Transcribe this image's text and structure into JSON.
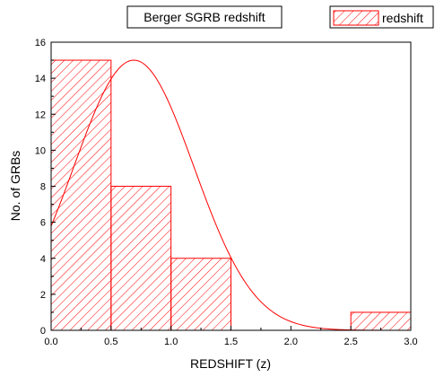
{
  "chart_data": {
    "type": "bar",
    "title": "Berger SGRB redshift",
    "xlabel": "REDSHIFT (z)",
    "ylabel": "No. of GRBs",
    "xlim": [
      0.0,
      3.0
    ],
    "ylim": [
      0,
      16
    ],
    "x_ticks": [
      "0.0",
      "0.5",
      "1.0",
      "1.5",
      "2.0",
      "2.5",
      "3.0"
    ],
    "y_ticks": [
      "0",
      "2",
      "4",
      "6",
      "8",
      "10",
      "12",
      "14",
      "16"
    ],
    "legend": {
      "position": "top-right",
      "entries": [
        "redshift"
      ]
    },
    "grid": false,
    "colors": {
      "series": "#ff0000",
      "axis": "#000000"
    },
    "series": [
      {
        "name": "redshift",
        "style": "hatched-histogram",
        "bins": [
          {
            "x0": 0.0,
            "x1": 0.5,
            "value": 15
          },
          {
            "x0": 0.5,
            "x1": 1.0,
            "value": 8
          },
          {
            "x0": 1.0,
            "x1": 1.5,
            "value": 4
          },
          {
            "x0": 1.5,
            "x1": 2.0,
            "value": 0
          },
          {
            "x0": 2.0,
            "x1": 2.5,
            "value": 0
          },
          {
            "x0": 2.5,
            "x1": 3.0,
            "value": 1
          }
        ]
      }
    ],
    "fit_curve": {
      "type": "gaussian",
      "peak": 15.0,
      "center": 0.69,
      "sigma": 0.5
    }
  }
}
